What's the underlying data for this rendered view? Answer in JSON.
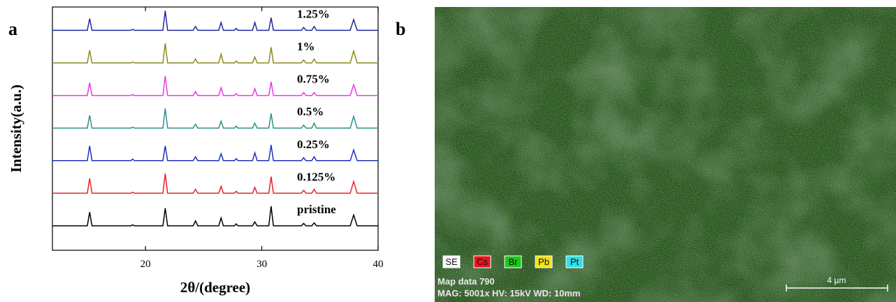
{
  "chart_data": {
    "type": "line",
    "panel_label": "a",
    "x_label": "2θ/(degree)",
    "y_label": "Intensity(a.u.)",
    "xlim": [
      12,
      40
    ],
    "xticks": [
      20,
      30,
      40
    ],
    "x": [
      12,
      15.0,
      15.2,
      15.4,
      18.75,
      18.9,
      19.05,
      21.5,
      21.7,
      21.9,
      24.1,
      24.3,
      24.5,
      26.3,
      26.5,
      26.7,
      27.65,
      27.8,
      27.95,
      29.2,
      29.4,
      29.6,
      30.6,
      30.8,
      31.0,
      33.4,
      33.6,
      33.8,
      34.3,
      34.5,
      34.7,
      37.6,
      37.9,
      38.2,
      40
    ],
    "series": [
      {
        "name": "pristine",
        "color": "#000000",
        "values": [
          0,
          0,
          0.7,
          0,
          0,
          0.05,
          0,
          0,
          0.9,
          0,
          0,
          0.25,
          0,
          0,
          0.4,
          0,
          0,
          0.1,
          0,
          0,
          0.2,
          0,
          0,
          1.0,
          0,
          0,
          0.12,
          0,
          0,
          0.15,
          0,
          0,
          0.55,
          0,
          0
        ]
      },
      {
        "name": "0.125%",
        "color": "#e8212b",
        "values": [
          0,
          0,
          0.75,
          0,
          0,
          0.05,
          0,
          0,
          1.0,
          0,
          0,
          0.2,
          0,
          0,
          0.35,
          0,
          0,
          0.1,
          0,
          0,
          0.3,
          0,
          0,
          0.85,
          0,
          0,
          0.15,
          0,
          0,
          0.2,
          0,
          0,
          0.6,
          0,
          0
        ]
      },
      {
        "name": "0.25%",
        "color": "#1f2fbf",
        "values": [
          0,
          0,
          0.75,
          0,
          0,
          0.08,
          0,
          0,
          0.75,
          0,
          0,
          0.2,
          0,
          0,
          0.35,
          0,
          0,
          0.1,
          0,
          0,
          0.4,
          0,
          0,
          0.8,
          0,
          0,
          0.15,
          0,
          0,
          0.2,
          0,
          0,
          0.55,
          0,
          0
        ]
      },
      {
        "name": "0.5%",
        "color": "#2f8f8a",
        "values": [
          0,
          0,
          0.65,
          0,
          0,
          0.05,
          0,
          0,
          1.0,
          0,
          0,
          0.2,
          0,
          0,
          0.35,
          0,
          0,
          0.1,
          0,
          0,
          0.25,
          0,
          0,
          0.75,
          0,
          0,
          0.15,
          0,
          0,
          0.25,
          0,
          0,
          0.6,
          0,
          0
        ]
      },
      {
        "name": "0.75%",
        "color": "#e63be6",
        "values": [
          0,
          0,
          0.65,
          0,
          0,
          0.05,
          0,
          0,
          1.0,
          0,
          0,
          0.2,
          0,
          0,
          0.4,
          0,
          0,
          0.1,
          0,
          0,
          0.35,
          0,
          0,
          0.7,
          0,
          0,
          0.15,
          0,
          0,
          0.15,
          0,
          0,
          0.55,
          0,
          0
        ]
      },
      {
        "name": "1%",
        "color": "#8c8a1e",
        "values": [
          0,
          0,
          0.65,
          0,
          0,
          0.05,
          0,
          0,
          1.0,
          0,
          0,
          0.2,
          0,
          0,
          0.45,
          0,
          0,
          0.1,
          0,
          0,
          0.3,
          0,
          0,
          0.8,
          0,
          0,
          0.15,
          0,
          0,
          0.2,
          0,
          0,
          0.6,
          0,
          0
        ]
      },
      {
        "name": "1.25%",
        "color": "#1f2a9e",
        "values": [
          0,
          0,
          0.6,
          0,
          0,
          0.05,
          0,
          0,
          1.0,
          0,
          0,
          0.2,
          0,
          0,
          0.4,
          0,
          0,
          0.1,
          0,
          0,
          0.4,
          0,
          0,
          0.65,
          0,
          0,
          0.15,
          0,
          0,
          0.2,
          0,
          0,
          0.55,
          0,
          0
        ]
      }
    ]
  },
  "panel_b": {
    "label": "b",
    "elements": [
      {
        "name": "SE",
        "color": "#ffffff"
      },
      {
        "name": "Cs",
        "color": "#e8141c"
      },
      {
        "name": "Br",
        "color": "#1ec81e"
      },
      {
        "name": "Pb",
        "color": "#f2e21a"
      },
      {
        "name": "Pt",
        "color": "#2fe0e8"
      }
    ],
    "info_lines": [
      "Map data 790",
      "MAG: 5001x  HV: 15kV  WD: 10mm"
    ],
    "scale_bar": "4 µm"
  }
}
